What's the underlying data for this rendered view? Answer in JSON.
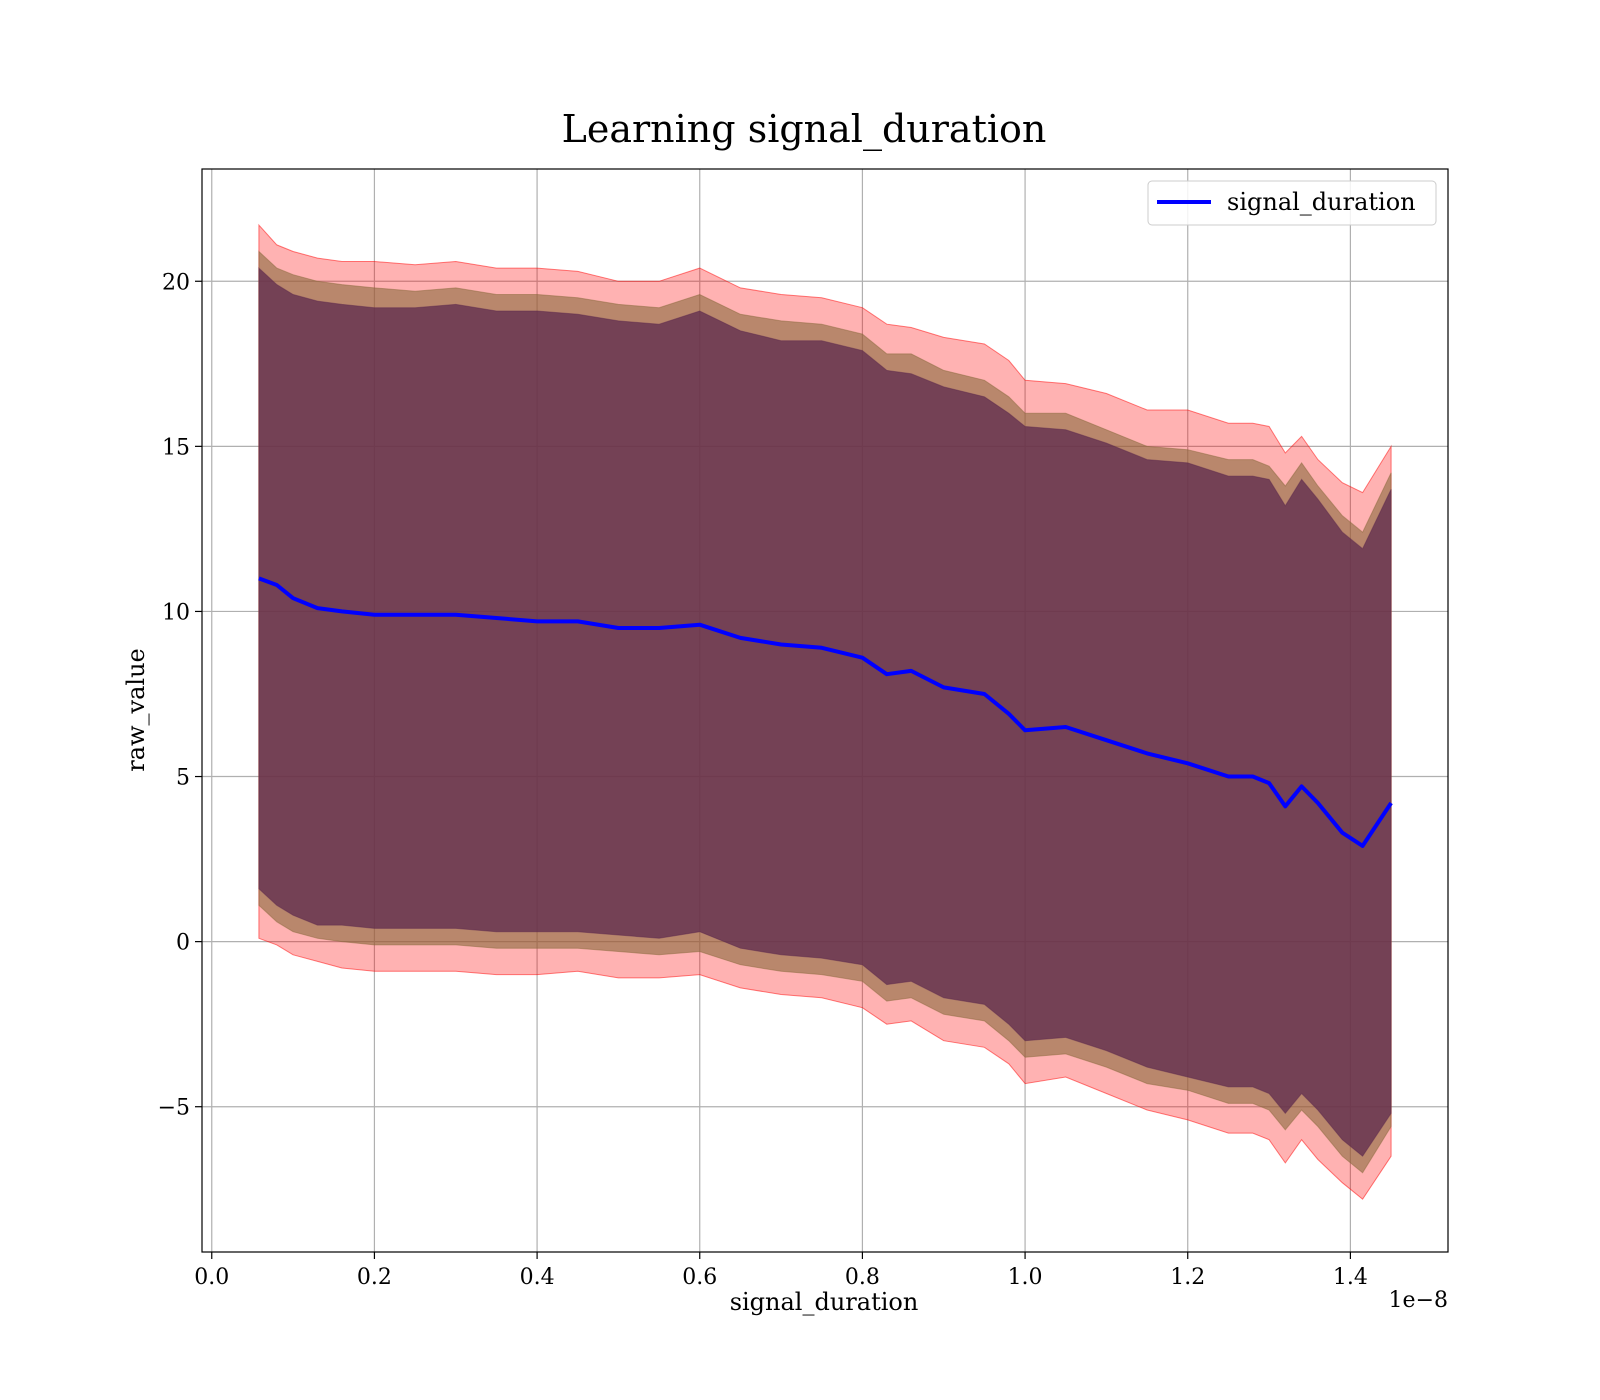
{
  "chart_data": {
    "type": "area",
    "title": "Learning signal_duration",
    "xlabel": "signal_duration",
    "ylabel": "raw_value",
    "x_offset_text": "1e−8",
    "xlim": [
      -0.012,
      1.52
    ],
    "ylim": [
      -9.4,
      23.4
    ],
    "x_ticks": [
      0.0,
      0.2,
      0.4,
      0.6,
      0.8,
      1.0,
      1.2,
      1.4
    ],
    "x_tick_labels": [
      "0.0",
      "0.2",
      "0.4",
      "0.6",
      "0.8",
      "1.0",
      "1.2",
      "1.4"
    ],
    "y_ticks": [
      -5,
      0,
      5,
      10,
      15,
      20
    ],
    "y_tick_labels": [
      "−5",
      "0",
      "5",
      "10",
      "15",
      "20"
    ],
    "grid": true,
    "legend_position": "top-right",
    "colors": {
      "line": "#0000ff",
      "outer_band": "#ff0000",
      "middle_band": "#8b6a3e",
      "inner_band": "#5e2a4e",
      "grid": "#b0b0b0"
    },
    "x": [
      0.058,
      0.08,
      0.1,
      0.13,
      0.16,
      0.2,
      0.25,
      0.3,
      0.35,
      0.4,
      0.45,
      0.5,
      0.55,
      0.6,
      0.65,
      0.7,
      0.75,
      0.8,
      0.83,
      0.86,
      0.9,
      0.95,
      0.98,
      1.0,
      1.05,
      1.1,
      1.15,
      1.2,
      1.25,
      1.28,
      1.3,
      1.32,
      1.34,
      1.36,
      1.39,
      1.415,
      1.45
    ],
    "series": [
      {
        "name": "signal_duration",
        "values": [
          11.0,
          10.8,
          10.4,
          10.1,
          10.0,
          9.9,
          9.9,
          9.9,
          9.8,
          9.7,
          9.7,
          9.5,
          9.5,
          9.6,
          9.2,
          9.0,
          8.9,
          8.6,
          8.1,
          8.2,
          7.7,
          7.5,
          6.9,
          6.4,
          6.5,
          6.1,
          5.7,
          5.4,
          5.0,
          5.0,
          4.8,
          4.1,
          4.7,
          4.2,
          3.3,
          2.9,
          4.2
        ]
      }
    ],
    "bands": [
      {
        "upper": [
          21.7,
          21.1,
          20.9,
          20.7,
          20.6,
          20.6,
          20.5,
          20.6,
          20.4,
          20.4,
          20.3,
          20.0,
          20.0,
          20.4,
          19.8,
          19.6,
          19.5,
          19.2,
          18.7,
          18.6,
          18.3,
          18.1,
          17.6,
          17.0,
          16.9,
          16.6,
          16.1,
          16.1,
          15.7,
          15.7,
          15.6,
          14.8,
          15.3,
          14.6,
          13.9,
          13.6,
          15.0
        ],
        "lower": [
          0.1,
          -0.1,
          -0.4,
          -0.6,
          -0.8,
          -0.9,
          -0.9,
          -0.9,
          -1.0,
          -1.0,
          -0.9,
          -1.1,
          -1.1,
          -1.0,
          -1.4,
          -1.6,
          -1.7,
          -2.0,
          -2.5,
          -2.4,
          -3.0,
          -3.2,
          -3.7,
          -4.3,
          -4.1,
          -4.6,
          -5.1,
          -5.4,
          -5.8,
          -5.8,
          -6.0,
          -6.7,
          -6.0,
          -6.6,
          -7.3,
          -7.8,
          -6.5
        ]
      },
      {
        "upper": [
          20.9,
          20.4,
          20.2,
          20.0,
          19.9,
          19.8,
          19.7,
          19.8,
          19.6,
          19.6,
          19.5,
          19.3,
          19.2,
          19.6,
          19.0,
          18.8,
          18.7,
          18.4,
          17.8,
          17.8,
          17.3,
          17.0,
          16.5,
          16.0,
          16.0,
          15.5,
          15.0,
          14.9,
          14.6,
          14.6,
          14.4,
          13.8,
          14.5,
          13.8,
          12.9,
          12.4,
          14.2
        ],
        "lower": [
          1.1,
          0.6,
          0.3,
          0.1,
          0.0,
          -0.1,
          -0.1,
          -0.1,
          -0.2,
          -0.2,
          -0.2,
          -0.3,
          -0.4,
          -0.3,
          -0.7,
          -0.9,
          -1.0,
          -1.2,
          -1.8,
          -1.7,
          -2.2,
          -2.4,
          -3.0,
          -3.5,
          -3.4,
          -3.8,
          -4.3,
          -4.5,
          -4.9,
          -4.9,
          -5.1,
          -5.7,
          -5.1,
          -5.6,
          -6.5,
          -7.0,
          -5.6
        ]
      },
      {
        "upper": [
          20.4,
          19.9,
          19.6,
          19.4,
          19.3,
          19.2,
          19.2,
          19.3,
          19.1,
          19.1,
          19.0,
          18.8,
          18.7,
          19.1,
          18.5,
          18.2,
          18.2,
          17.9,
          17.3,
          17.2,
          16.8,
          16.5,
          16.0,
          15.6,
          15.5,
          15.1,
          14.6,
          14.5,
          14.1,
          14.1,
          14.0,
          13.2,
          14.0,
          13.4,
          12.4,
          11.9,
          13.7
        ],
        "lower": [
          1.6,
          1.1,
          0.8,
          0.5,
          0.5,
          0.4,
          0.4,
          0.4,
          0.3,
          0.3,
          0.3,
          0.2,
          0.1,
          0.3,
          -0.2,
          -0.4,
          -0.5,
          -0.7,
          -1.3,
          -1.2,
          -1.7,
          -1.9,
          -2.5,
          -3.0,
          -2.9,
          -3.3,
          -3.8,
          -4.1,
          -4.4,
          -4.4,
          -4.6,
          -5.2,
          -4.6,
          -5.1,
          -6.0,
          -6.5,
          -5.2
        ]
      }
    ]
  }
}
